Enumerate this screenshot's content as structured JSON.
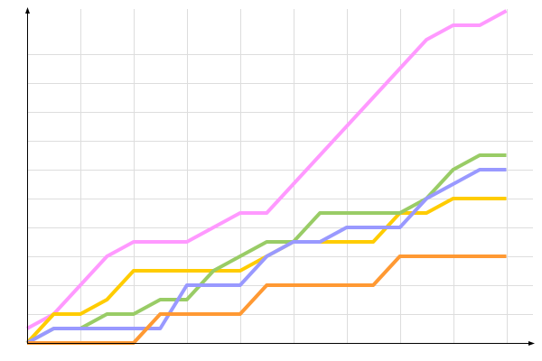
{
  "chart_data": {
    "type": "line",
    "title": "",
    "xlabel": "",
    "ylabel": "",
    "x": [
      0,
      1,
      2,
      3,
      4,
      5,
      6,
      7,
      8,
      9,
      10,
      11,
      12,
      13,
      14,
      15,
      16,
      17,
      18
    ],
    "xlim": [
      0,
      19
    ],
    "ylim": [
      0,
      23
    ],
    "x_grid_step": 2,
    "y_grid_step": 2,
    "grid": true,
    "legend": "none",
    "series": [
      {
        "color": "#ff99ff",
        "values": [
          1,
          2,
          4,
          6,
          7,
          7,
          7,
          8,
          9,
          9,
          11,
          13,
          15,
          17,
          19,
          21,
          22,
          22,
          23
        ]
      },
      {
        "color": "#ffcc00",
        "values": [
          0,
          2,
          2,
          3,
          5,
          5,
          5,
          5,
          5,
          6,
          7,
          7,
          7,
          7,
          9,
          9,
          10,
          10,
          10
        ]
      },
      {
        "color": "#99cc66",
        "values": [
          0,
          1,
          1,
          2,
          2,
          3,
          3,
          5,
          6,
          7,
          7,
          9,
          9,
          9,
          9,
          10,
          12,
          13,
          13
        ]
      },
      {
        "color": "#9999ff",
        "values": [
          0,
          1,
          1,
          1,
          1,
          1,
          4,
          4,
          4,
          6,
          7,
          7,
          8,
          8,
          8,
          10,
          11,
          12,
          12
        ]
      },
      {
        "color": "#ff9933",
        "values": [
          0,
          0,
          0,
          0,
          0,
          2,
          2,
          2,
          2,
          4,
          4,
          4,
          4,
          4,
          6,
          6,
          6,
          6,
          6
        ]
      }
    ]
  }
}
